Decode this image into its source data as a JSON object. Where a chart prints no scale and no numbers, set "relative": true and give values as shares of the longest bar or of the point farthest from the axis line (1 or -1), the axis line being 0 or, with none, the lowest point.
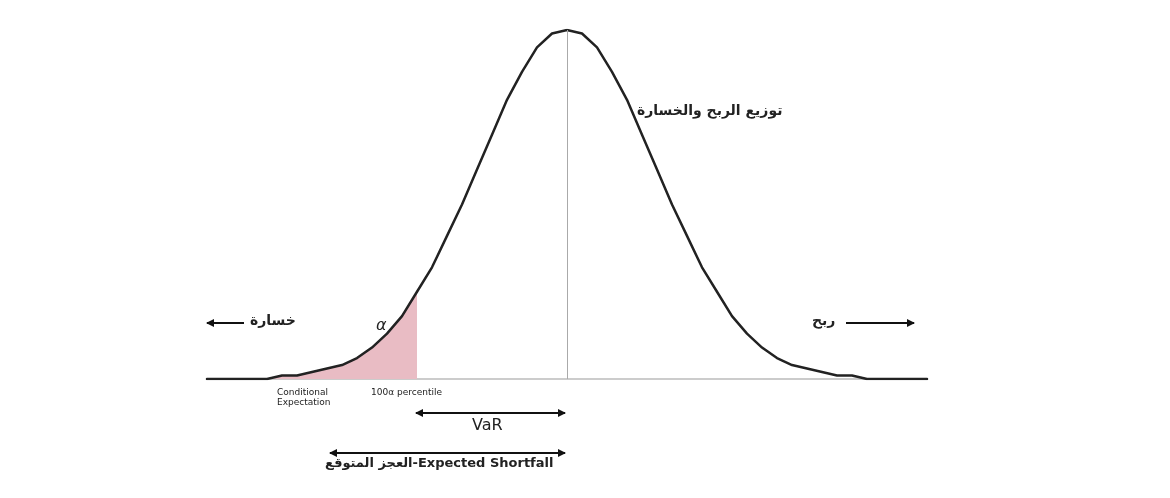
{
  "chart_data": {
    "type": "line",
    "relative": true,
    "marker": "none",
    "categories": [
      null,
      null,
      null,
      null,
      null,
      null,
      null,
      null,
      null,
      null,
      null,
      null,
      null,
      null,
      null,
      null,
      null,
      null,
      null,
      null,
      null,
      null,
      null,
      null,
      null,
      null,
      null,
      null,
      null,
      null,
      null,
      null,
      null,
      null,
      null,
      null,
      null,
      null,
      null,
      null,
      null,
      null,
      null,
      null,
      null,
      null,
      null,
      null,
      null
    ],
    "series": [
      {
        "color": "#222222",
        "values": [
          0,
          0,
          0,
          0,
          0,
          0.01,
          0.01,
          0.02,
          0.03,
          0.04,
          0.06,
          0.09,
          0.13,
          0.18,
          0.25,
          0.32,
          0.41,
          0.5,
          0.6,
          0.7,
          0.8,
          0.88,
          0.95,
          0.99,
          1,
          0.99,
          0.95,
          0.88,
          0.8,
          0.7,
          0.6,
          0.5,
          0.41,
          0.32,
          0.25,
          0.18,
          0.13,
          0.09,
          0.06,
          0.04,
          0.03,
          0.02,
          0.01,
          0.01,
          0,
          0,
          0,
          0,
          0
        ]
      },
      {
        "type": "area",
        "color": "#e9bcc4",
        "values": [
          0,
          0,
          0,
          0,
          0,
          0.01,
          0.01,
          0.02,
          0.03,
          0.04,
          0.06,
          0.09,
          0.13,
          0.18,
          0.25,
          null,
          null,
          null,
          null,
          null,
          null,
          null,
          null,
          null,
          null,
          null,
          null,
          null,
          null,
          null,
          null,
          null,
          null,
          null,
          null,
          null,
          null,
          null,
          null,
          null,
          null,
          null,
          null,
          null,
          null,
          null,
          null,
          null,
          null
        ]
      }
    ],
    "ref_lines": [
      {
        "axis": "x",
        "color": "#aaaaaa"
      }
    ],
    "annotations": [
      "خسارة",
      "ربح",
      "توزيع الربح والخسارة",
      "α",
      "Conditional Expectation",
      "100α percentile",
      "VaR",
      "العجز المتوقع-Expected Shortfall"
    ]
  }
}
